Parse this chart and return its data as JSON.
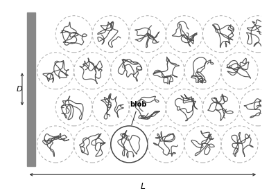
{
  "fig_width": 3.88,
  "fig_height": 2.76,
  "dpi": 100,
  "bg_color": "#ffffff",
  "wall_color": "#888888",
  "blob_edge_color": "#aaaaaa",
  "blob_linewidth": 0.7,
  "blob_linestyle_dash": [
    4,
    3
  ],
  "chain_color": "#555555",
  "chain_linewidth": 0.85,
  "highlighted_blob_edge_color": "#444444",
  "highlighted_blob_linewidth": 1.1,
  "blob_label": "blob",
  "blob_label_fontsize": 7,
  "blob_label_fontweight": "bold",
  "D_label": "D",
  "L_label": "L",
  "arrow_color": "#333333",
  "label_fontsize": 8,
  "label_fontstyle": "italic",
  "grid_cols": 6,
  "grid_rows": 4,
  "highlighted_col": 2,
  "highlighted_row": 0
}
